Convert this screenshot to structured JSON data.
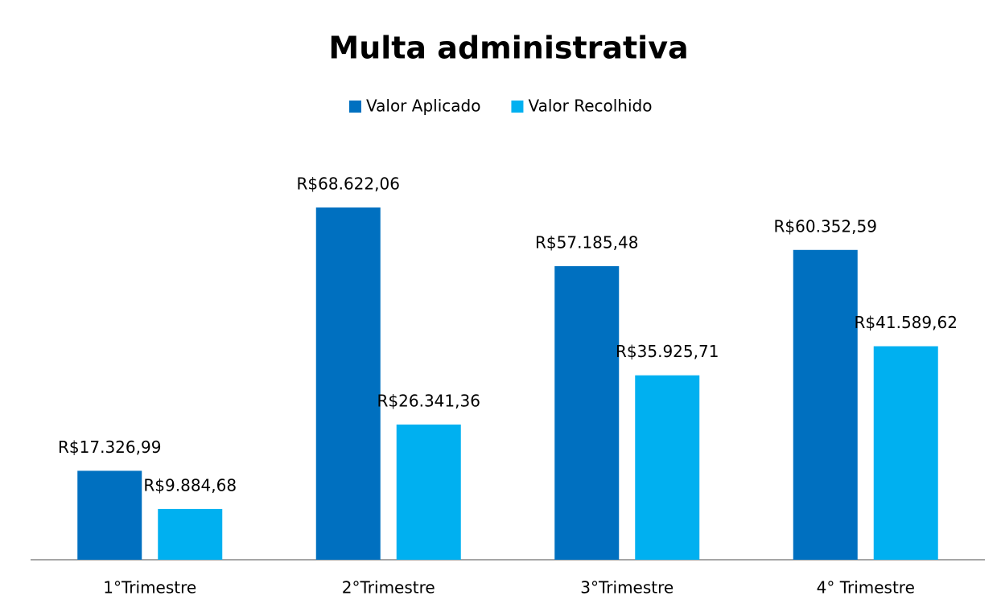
{
  "chart_data": {
    "type": "bar",
    "title": "Multa administrativa",
    "categories": [
      "1°Trimestre",
      "2°Trimestre",
      "3°Trimestre",
      "4° Trimestre"
    ],
    "series": [
      {
        "name": "Valor Aplicado",
        "color": "#0070c0",
        "values": [
          17326.99,
          68622.06,
          57185.48,
          60352.59
        ],
        "value_labels": [
          "R$17.326,99",
          "R$68.622,06",
          "R$57.185,48",
          "R$60.352,59"
        ]
      },
      {
        "name": "Valor Recolhido",
        "color": "#00b0f0",
        "values": [
          9884.68,
          26341.36,
          35925.71,
          41589.62
        ],
        "value_labels": [
          "R$9.884,68",
          "R$26.341,36",
          "R$35.925,71",
          "R$41.589,62"
        ]
      }
    ],
    "legend": "top"
  }
}
